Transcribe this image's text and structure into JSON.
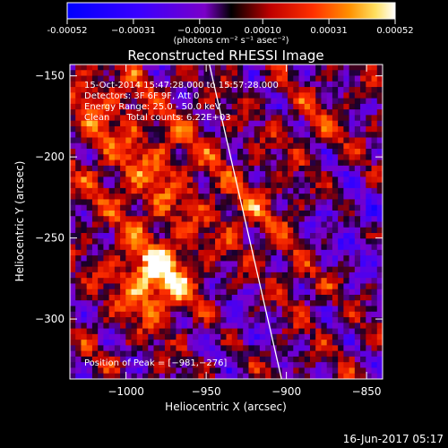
{
  "chart_data": {
    "type": "heatmap",
    "title": "Reconstructed RHESSI Image",
    "xlabel": "Heliocentric X (arcsec)",
    "ylabel": "Heliocentric Y (arcsec)",
    "xlim": [
      -1035,
      -840
    ],
    "ylim": [
      -337,
      -143
    ],
    "x_ticks": [
      -1000,
      -950,
      -900,
      -850
    ],
    "x_tick_labels": [
      "−1000",
      "−950",
      "−900",
      "−850"
    ],
    "y_ticks": [
      -150,
      -200,
      -250,
      -300
    ],
    "y_tick_labels": [
      "−150",
      "−200",
      "−250",
      "−300"
    ],
    "colorbar": {
      "range": [
        -0.00052,
        0.00052
      ],
      "ticks": [
        -0.00052,
        -0.00031,
        -0.0001,
        0.0001,
        0.00031,
        0.00052
      ],
      "tick_labels": [
        "-0.00052",
        "−0.00031",
        "−0.00010",
        "0.00010",
        "0.00031",
        "0.00052"
      ],
      "unit_label": "(photons cm⁻² s⁻¹ asec⁻²)"
    },
    "peak": {
      "x": -981,
      "y": -276
    },
    "limb_line": [
      [
        -948,
        -143
      ],
      [
        -903,
        -337
      ]
    ],
    "legend": "none",
    "grid": false
  },
  "annotations": {
    "time_range": "15-Oct-2014 15:47:28.000 to 15:57:28.000",
    "detectors": "Detectors: 3F 6F 9F, Att 0",
    "energy_range": "Energy Range: 25.0 - 50.0 keV",
    "clean_counts": "Clean      Total counts: 6.22E+03",
    "peak_position": "Position of Peak = [−981,−276]"
  },
  "footer": {
    "timestamp": "16-Jun-2017 05:17"
  },
  "colors": {
    "background": "#000000",
    "text": "#ffffff"
  }
}
